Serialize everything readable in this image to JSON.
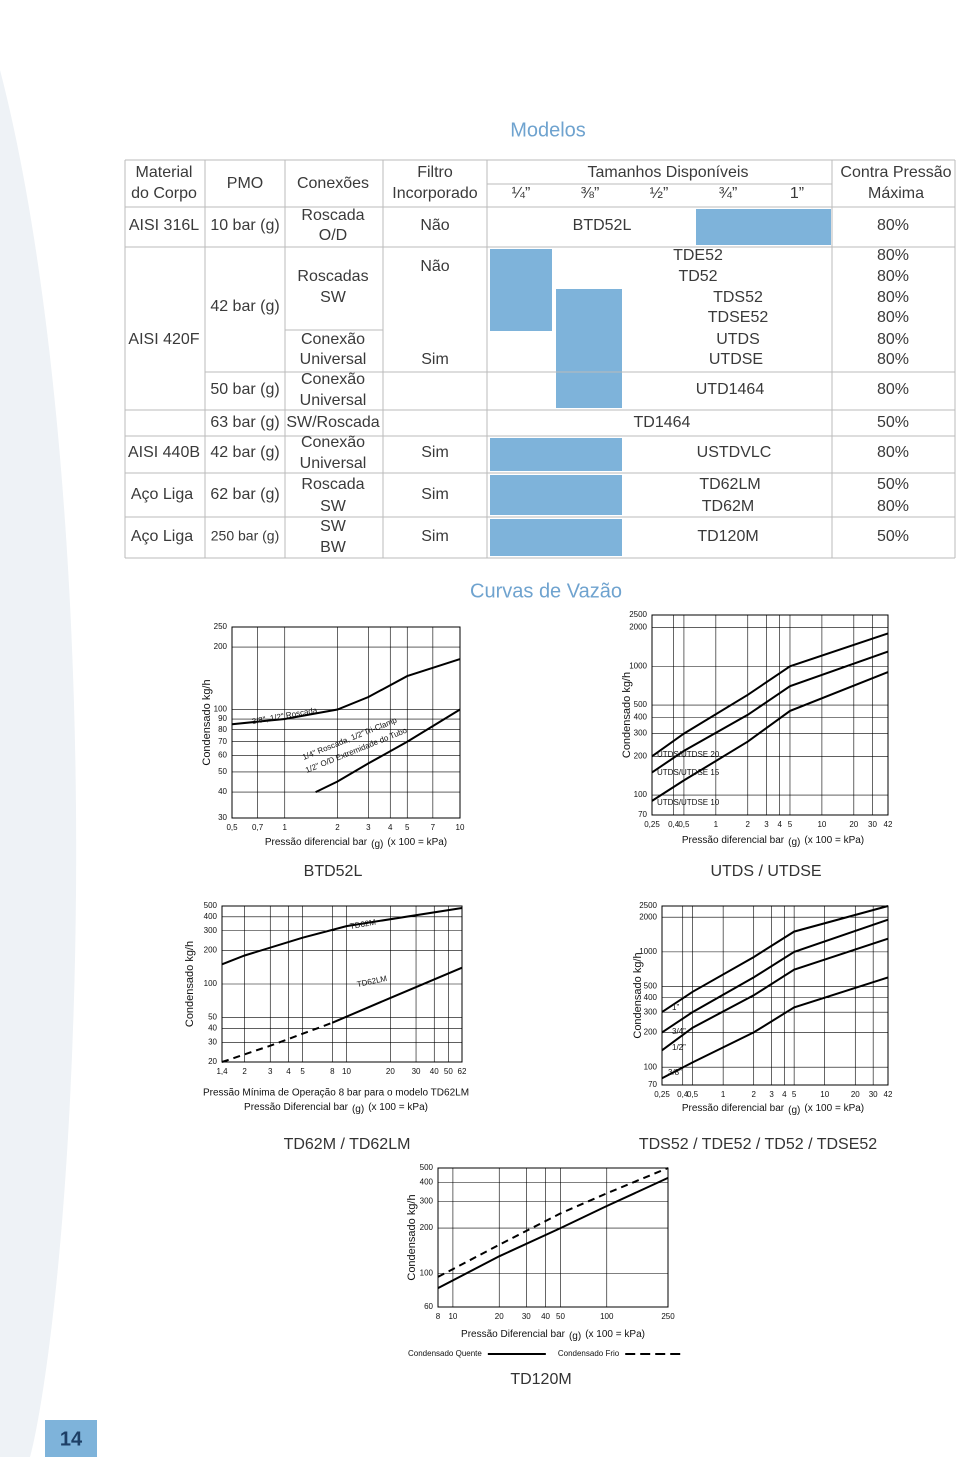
{
  "table": {
    "title": "Modelos",
    "header": [
      "Material",
      "do Corpo",
      "PMO",
      "Conexões",
      "Filtro",
      "Incorporado",
      "Tamanhos Disponíveis",
      "Contra Pressão",
      "Máxima"
    ],
    "sizes": [
      "¼”",
      "⅜”",
      "½”",
      "¾”",
      "1”"
    ],
    "material": [
      "AISI 316L",
      "AISI 420F",
      "AISI 440B",
      "Aço Liga",
      "Aço Liga"
    ],
    "pmo": [
      "10 bar (g)",
      "42 bar (g)",
      "50 bar (g)",
      "63 bar (g)",
      "42 bar (g)",
      "62 bar (g)",
      "250 bar (g)"
    ],
    "connections": [
      "Roscada",
      "O/D",
      "Roscadas",
      "SW",
      "Conexão",
      "Universal",
      "Conexão",
      "Universal",
      "SW/Roscada",
      "Conexão",
      "Universal",
      "Roscada",
      "SW",
      "SW",
      "BW"
    ],
    "filter": [
      "Não",
      "Não",
      "Sim",
      "Sim",
      "Sim",
      "Sim"
    ],
    "models": [
      "BTD52L",
      "TDE52",
      "TD52",
      "TDS52",
      "TDSE52",
      "UTDS",
      "UTDSE",
      "UTD1464",
      "TD1464",
      "USTDVLC",
      "TD62LM",
      "TD62M",
      "TD120M"
    ],
    "back_pressure": [
      "80%",
      "80%",
      "80%",
      "80%",
      "80%",
      "80%",
      "80%",
      "80%",
      "50%",
      "80%",
      "50%",
      "80%",
      "50%"
    ]
  },
  "curves_title": "Curvas de Vazão",
  "page_number": "14",
  "chart_data": [
    {
      "type": "line",
      "title": "BTD52L",
      "y_label": "Condensado kg/h",
      "x_label": [
        "Pressão diferencial bar",
        "(g)",
        "(x 100 = kPa)"
      ],
      "log_x": true,
      "log_y": true,
      "grid": true,
      "xlim": [
        0.5,
        10
      ],
      "xticks": [
        {
          "value": 0.5,
          "label": "0,5"
        },
        {
          "value": 0.7,
          "label": "0,7"
        },
        1,
        2,
        3,
        4,
        5,
        7,
        10
      ],
      "ylim": [
        30,
        250
      ],
      "yticks": [
        30,
        40,
        50,
        60,
        70,
        80,
        90,
        100,
        200,
        250
      ],
      "series": [
        {
          "color": "#000000",
          "x": [
            0.5,
            1,
            2,
            3,
            5,
            10
          ],
          "values": [
            85,
            90,
            100,
            115,
            145,
            175
          ]
        },
        {
          "color": "#000000",
          "x": [
            1.5,
            2,
            3,
            5,
            10
          ],
          "values": [
            40,
            45,
            55,
            70,
            100
          ]
        }
      ],
      "annotations": [
        "3/8\", 1/2\" Roscada",
        "1/4\" Roscada, 1/2\"Tri-Clamp",
        "1/2\" O/D Extremidade do Tubo"
      ]
    },
    {
      "type": "line",
      "title": "UTDS / UTDSE",
      "y_label": "Condensado kg/h",
      "x_label": [
        "Pressão diferencial bar",
        "(g)",
        "(x 100 = kPa)"
      ],
      "log_x": true,
      "log_y": true,
      "grid": true,
      "xlim": [
        0.25,
        42
      ],
      "xticks": [
        {
          "value": 0.25,
          "label": "0,25"
        },
        {
          "value": 0.4,
          "label": "0,4"
        },
        {
          "value": 0.5,
          "label": "0,5"
        },
        1,
        2,
        3,
        4,
        5,
        10,
        20,
        30,
        42
      ],
      "ylim": [
        70,
        2500
      ],
      "yticks": [
        70,
        100,
        200,
        300,
        400,
        500,
        1000,
        2000,
        2500
      ],
      "series": [
        {
          "color": "#000000",
          "x": [
            0.25,
            0.5,
            2,
            5,
            42
          ],
          "values": [
            200,
            300,
            600,
            1000,
            1800
          ]
        },
        {
          "color": "#000000",
          "x": [
            0.25,
            0.5,
            2,
            5,
            42
          ],
          "values": [
            150,
            220,
            420,
            700,
            1300
          ]
        },
        {
          "color": "#000000",
          "x": [
            0.25,
            0.5,
            2,
            5,
            42
          ],
          "values": [
            90,
            130,
            260,
            450,
            900
          ]
        }
      ],
      "annotations": [
        "UTDS/UTDSE 20",
        "UTDS/UTDSE 15",
        "UTDS/UTDSE 10"
      ]
    },
    {
      "type": "line",
      "title": "TD62M / TD62LM",
      "y_label": "Condensado kg/h",
      "note": "Pressão Mínima de Operação 8 bar para o modelo TD62LM",
      "x_label": [
        "Pressão Diferencial bar",
        "(g)",
        "(x 100 = kPa)"
      ],
      "log_x": true,
      "log_y": true,
      "grid": true,
      "xlim": [
        1.4,
        62
      ],
      "xticks": [
        {
          "value": 1.4,
          "label": "1,4"
        },
        2,
        3,
        4,
        5,
        8,
        10,
        20,
        30,
        40,
        50,
        62
      ],
      "ylim": [
        20,
        500
      ],
      "yticks": [
        20,
        30,
        40,
        50,
        100,
        200,
        300,
        400,
        500
      ],
      "series": [
        {
          "color": "#000000",
          "x": [
            1.4,
            2,
            5,
            10,
            62
          ],
          "values": [
            150,
            180,
            260,
            330,
            480
          ]
        },
        {
          "color": "#000000",
          "dash": true,
          "x": [
            1.4,
            3,
            8
          ],
          "values": [
            20,
            28,
            45
          ]
        },
        {
          "color": "#000000",
          "x": [
            8,
            20,
            62
          ],
          "values": [
            45,
            75,
            140
          ]
        }
      ],
      "annotations": [
        "TD62M",
        "TD62LM"
      ]
    },
    {
      "type": "line",
      "title": "TDS52 / TDE52 / TD52 / TDSE52",
      "y_label": "Condensado kg/h",
      "x_label": [
        "Pressão diferencial bar",
        "(g)",
        "(x 100 = kPa)"
      ],
      "log_x": true,
      "log_y": true,
      "grid": true,
      "xlim": [
        0.25,
        42
      ],
      "xticks": [
        {
          "value": 0.25,
          "label": "0,25"
        },
        {
          "value": 0.4,
          "label": "0,4"
        },
        {
          "value": 0.5,
          "label": "0,5"
        },
        1,
        2,
        3,
        4,
        5,
        10,
        20,
        30,
        42
      ],
      "ylim": [
        70,
        2500
      ],
      "yticks": [
        70,
        100,
        200,
        300,
        400,
        500,
        1000,
        2000,
        2500
      ],
      "series": [
        {
          "color": "#000000",
          "x": [
            0.25,
            0.5,
            2,
            5,
            42
          ],
          "values": [
            300,
            450,
            900,
            1500,
            2500
          ]
        },
        {
          "color": "#000000",
          "x": [
            0.25,
            0.5,
            2,
            5,
            42
          ],
          "values": [
            200,
            300,
            600,
            1000,
            1900
          ]
        },
        {
          "color": "#000000",
          "x": [
            0.25,
            0.5,
            2,
            5,
            42
          ],
          "values": [
            140,
            220,
            420,
            700,
            1300
          ]
        },
        {
          "color": "#000000",
          "x": [
            0.25,
            0.5,
            2,
            5,
            42
          ],
          "values": [
            80,
            110,
            200,
            330,
            600
          ]
        }
      ],
      "annotations": [
        "1”",
        "3/4”",
        "1/2”",
        "3/8”"
      ]
    },
    {
      "type": "line",
      "title": "TD120M",
      "y_label": "Condensado kg/h",
      "x_label": [
        "Pressão Diferencial bar",
        "(g)",
        "(x 100 = kPa)"
      ],
      "log_x": true,
      "log_y": true,
      "grid": true,
      "legend": "bottom",
      "xlim": [
        8,
        250
      ],
      "xticks": [
        8,
        10,
        20,
        30,
        40,
        50,
        100,
        250
      ],
      "ylim": [
        60,
        500
      ],
      "yticks": [
        60,
        100,
        200,
        300,
        400,
        500
      ],
      "series": [
        {
          "name": "Condensado Quente",
          "color": "#000000",
          "x": [
            8,
            20,
            50,
            100,
            250
          ],
          "values": [
            80,
            130,
            200,
            280,
            430
          ]
        },
        {
          "name": "Condensado Frio",
          "color": "#000000",
          "dash": true,
          "x": [
            8,
            20,
            50,
            100,
            250
          ],
          "values": [
            95,
            155,
            250,
            340,
            500
          ]
        }
      ]
    }
  ]
}
